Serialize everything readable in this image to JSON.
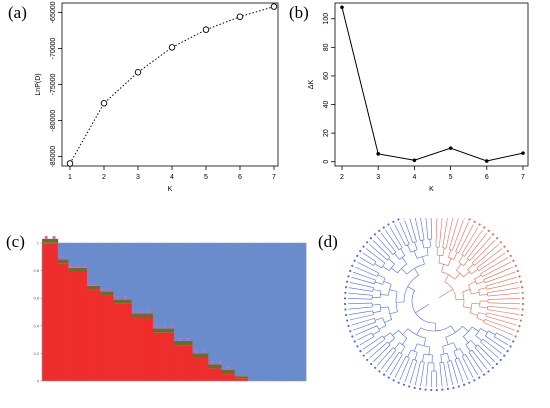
{
  "panel_labels": {
    "a": "(a)",
    "b": "(b)",
    "c": "(c)",
    "d": "(d)"
  },
  "colors": {
    "red": "#ee2d2d",
    "blue": "#6b8ccc",
    "olive": "#6e6a2a",
    "magenta": "#cf60cf",
    "tree_red": "#d4715f",
    "tree_blue": "#4f6fd1"
  },
  "chart_data": [
    {
      "panel": "a",
      "type": "line",
      "line_style": "dotted",
      "marker": "open-circle",
      "xlabel": "K",
      "ylabel": "LnP(D)",
      "x": [
        1,
        2,
        3,
        4,
        5,
        6,
        7
      ],
      "y": [
        -85950,
        -77600,
        -73300,
        -69850,
        -67400,
        -65600,
        -64200
      ],
      "xlim": [
        1,
        7
      ],
      "ylim": [
        -86300,
        -63700
      ],
      "xticks": [
        1,
        2,
        3,
        4,
        5,
        6,
        7
      ],
      "yticks": [
        -85000,
        -80000,
        -75000,
        -70000,
        -65000
      ],
      "ytick_labels": [
        "-85000",
        "-80000",
        "-75000",
        "-70000",
        "-65000"
      ]
    },
    {
      "panel": "b",
      "type": "line",
      "line_style": "solid",
      "marker": "filled-dot",
      "xlabel": "K",
      "ylabel": "ΔK",
      "x": [
        2,
        3,
        4,
        5,
        6,
        7
      ],
      "y": [
        108,
        5.5,
        1,
        9.5,
        0.5,
        6
      ],
      "xlim": [
        2,
        7
      ],
      "ylim": [
        -3,
        111
      ],
      "xticks": [
        2,
        3,
        4,
        5,
        6,
        7
      ],
      "yticks": [
        0,
        20,
        40,
        60,
        80,
        100
      ],
      "ytick_labels": [
        "0",
        "20",
        "40",
        "60",
        "80",
        "100"
      ]
    },
    {
      "panel": "c",
      "type": "bar",
      "stacked": true,
      "orientation": "vertical",
      "n_individuals": 100,
      "ylim": [
        0,
        1
      ],
      "yticks": [
        0,
        0.2,
        0.4,
        0.6,
        0.8,
        1
      ],
      "ytick_labels": [
        "0",
        "0.2",
        "0.4",
        "0.6",
        "0.8",
        "1"
      ],
      "breakpoints": [
        [
          0,
          1.0
        ],
        [
          6,
          0.85
        ],
        [
          10,
          0.79
        ],
        [
          17,
          0.66
        ],
        [
          22,
          0.62
        ],
        [
          27,
          0.56
        ],
        [
          34,
          0.46
        ],
        [
          42,
          0.35
        ],
        [
          50,
          0.26
        ],
        [
          57,
          0.17
        ],
        [
          63,
          0.09
        ],
        [
          68,
          0.05
        ],
        [
          73,
          0.02
        ],
        [
          78,
          0.0
        ],
        [
          100,
          0.0
        ]
      ],
      "series": [
        {
          "name": "",
          "color": "#ee2d2d"
        },
        {
          "name": "",
          "color": "#6e6a2a"
        },
        {
          "name": "",
          "color": "#cf60cf"
        },
        {
          "name": "",
          "color": "#6b8ccc"
        }
      ]
    },
    {
      "panel": "d",
      "type": "tree",
      "layout": "circular",
      "n_tips": 100,
      "clades": [
        {
          "color": "#d4715f",
          "tips": 32
        },
        {
          "color": "#4f6fd1",
          "tips": 68
        }
      ]
    }
  ]
}
